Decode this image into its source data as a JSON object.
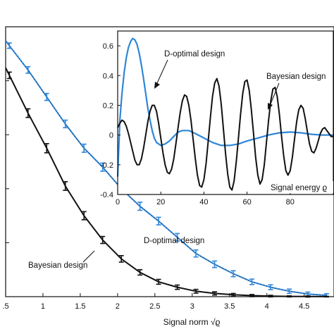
{
  "colors": {
    "bayesian": "#111111",
    "d_optimal": "#2f86d8"
  },
  "chart_data": [
    {
      "type": "line",
      "title": "",
      "xlabel": "Signal norm √ϱ",
      "ylabel": "",
      "xlim": [
        0.5,
        4.9
      ],
      "x_ticks": [
        {
          "value": 0.5,
          "label": ".5"
        },
        {
          "value": 1,
          "label": "1"
        },
        {
          "value": 1.5,
          "label": "1.5"
        },
        {
          "value": 2,
          "label": "2"
        },
        {
          "value": 2.5,
          "label": "2.5"
        },
        {
          "value": 3,
          "label": "3"
        },
        {
          "value": 3.5,
          "label": "3.5"
        },
        {
          "value": 4,
          "label": "4"
        },
        {
          "value": 4.5,
          "label": "4.5"
        }
      ],
      "grid": false,
      "series": [
        {
          "name": "D-optimal design",
          "color": "#2f86d8",
          "x": [
            0.55,
            0.8,
            1.05,
            1.3,
            1.55,
            1.8,
            2.05,
            2.3,
            2.55,
            2.8,
            3.05,
            3.3,
            3.55,
            3.8,
            4.05,
            4.3,
            4.55,
            4.8
          ],
          "y": [
            0.93,
            0.84,
            0.74,
            0.64,
            0.55,
            0.48,
            0.4,
            0.335,
            0.28,
            0.22,
            0.16,
            0.12,
            0.085,
            0.055,
            0.035,
            0.02,
            0.01,
            0.005
          ],
          "err": [
            0.01,
            0.012,
            0.013,
            0.014,
            0.015,
            0.015,
            0.015,
            0.015,
            0.014,
            0.014,
            0.013,
            0.012,
            0.011,
            0.01,
            0.009,
            0.008,
            0.007,
            0.006
          ]
        },
        {
          "name": "Bayesian design",
          "color": "#111111",
          "x": [
            0.55,
            0.8,
            1.05,
            1.3,
            1.55,
            1.8,
            2.05,
            2.3,
            2.55,
            2.8,
            3.05,
            3.3,
            3.55,
            3.8,
            4.05,
            4.3,
            4.55,
            4.8
          ],
          "y": [
            0.82,
            0.68,
            0.55,
            0.41,
            0.3,
            0.21,
            0.14,
            0.09,
            0.055,
            0.035,
            0.02,
            0.012,
            0.007,
            0.004,
            0.002,
            0.001,
            0.0005,
            0.0002
          ],
          "err": [
            0.012,
            0.016,
            0.017,
            0.016,
            0.015,
            0.013,
            0.012,
            0.01,
            0.009,
            0.008,
            0.007,
            0.006,
            0.005,
            0.004,
            0.003,
            0.002,
            0.002,
            0.001
          ]
        }
      ],
      "annotations": [
        {
          "id": "d-optimal",
          "text": "D-optimal design"
        },
        {
          "id": "bayesian",
          "text": "Bayesian design"
        }
      ]
    },
    {
      "type": "line",
      "title": "",
      "xlabel": "Signal energy ϱ",
      "ylabel": "",
      "xlim": [
        0,
        100
      ],
      "ylim": [
        -0.4,
        0.7
      ],
      "x_ticks": [
        {
          "value": 0,
          "label": "0"
        },
        {
          "value": 20,
          "label": "20"
        },
        {
          "value": 40,
          "label": "40"
        },
        {
          "value": 60,
          "label": "60"
        },
        {
          "value": 80,
          "label": "80"
        }
      ],
      "y_ticks": [
        {
          "value": 0.6,
          "label": "0.6"
        },
        {
          "value": 0.4,
          "label": "0.4"
        },
        {
          "value": 0.2,
          "label": "0.2"
        },
        {
          "value": 0,
          "label": "0"
        },
        {
          "value": -0.2,
          "label": "-0.2"
        },
        {
          "value": -0.4,
          "label": "-0.4"
        }
      ],
      "grid": false,
      "series": [
        {
          "name": "D-optimal design",
          "color": "#2f86d8",
          "x": [
            0,
            1,
            2,
            3,
            4,
            5,
            6,
            7,
            8,
            9,
            10,
            11,
            12,
            13,
            14,
            15,
            16,
            17,
            18,
            20,
            22,
            24,
            26,
            28,
            30,
            33,
            36,
            40,
            44,
            48,
            52,
            56,
            60,
            65,
            70,
            75,
            80,
            85,
            90,
            95,
            100
          ],
          "y": [
            -0.28,
            0.1,
            0.28,
            0.42,
            0.52,
            0.59,
            0.63,
            0.65,
            0.64,
            0.61,
            0.55,
            0.47,
            0.38,
            0.28,
            0.18,
            0.1,
            0.03,
            -0.02,
            -0.05,
            -0.07,
            -0.06,
            -0.04,
            -0.01,
            0.02,
            0.03,
            0.03,
            0.01,
            -0.02,
            -0.05,
            -0.07,
            -0.07,
            -0.06,
            -0.04,
            -0.02,
            0.0,
            0.015,
            0.02,
            0.015,
            0.005,
            0.0,
            0.0
          ]
        },
        {
          "name": "Bayesian design",
          "color": "#111111",
          "x": [
            0,
            1,
            2,
            3,
            4,
            5,
            6,
            7,
            8,
            9,
            10,
            11,
            12,
            13,
            14,
            15,
            16,
            17,
            18,
            19,
            20,
            21,
            22,
            23,
            24,
            25,
            26,
            27,
            28,
            29,
            30,
            31,
            32,
            33,
            34,
            35,
            36,
            37,
            38,
            39,
            40,
            41,
            42,
            43,
            44,
            45,
            46,
            47,
            48,
            49,
            50,
            51,
            52,
            53,
            54,
            55,
            56,
            57,
            58,
            59,
            60,
            61,
            62,
            63,
            64,
            65,
            66,
            67,
            68,
            69,
            70,
            71,
            72,
            73,
            74,
            75,
            76,
            77,
            78,
            79,
            80,
            81,
            82,
            83,
            84,
            85,
            86,
            87,
            88,
            89,
            90,
            91,
            92,
            93,
            94,
            95,
            96,
            97,
            98,
            99,
            100
          ],
          "y": [
            0.05,
            0.08,
            0.1,
            0.09,
            0.06,
            0.01,
            -0.05,
            -0.11,
            -0.17,
            -0.2,
            -0.2,
            -0.16,
            -0.09,
            0.0,
            0.09,
            0.16,
            0.2,
            0.2,
            0.16,
            0.08,
            -0.02,
            -0.12,
            -0.2,
            -0.25,
            -0.26,
            -0.23,
            -0.16,
            -0.06,
            0.05,
            0.15,
            0.23,
            0.27,
            0.26,
            0.2,
            0.1,
            -0.03,
            -0.16,
            -0.27,
            -0.34,
            -0.35,
            -0.3,
            -0.19,
            -0.04,
            0.12,
            0.26,
            0.35,
            0.38,
            0.33,
            0.21,
            0.05,
            -0.12,
            -0.26,
            -0.35,
            -0.37,
            -0.31,
            -0.18,
            -0.02,
            0.14,
            0.28,
            0.36,
            0.37,
            0.3,
            0.17,
            0.01,
            -0.15,
            -0.27,
            -0.33,
            -0.3,
            -0.2,
            -0.05,
            0.1,
            0.23,
            0.31,
            0.32,
            0.26,
            0.14,
            -0.01,
            -0.14,
            -0.24,
            -0.27,
            -0.24,
            -0.15,
            -0.03,
            0.09,
            0.17,
            0.2,
            0.18,
            0.11,
            0.02,
            -0.06,
            -0.11,
            -0.12,
            -0.09,
            -0.04,
            0.01,
            0.04,
            0.05,
            0.03,
            0.01,
            -0.01,
            -0.01
          ]
        }
      ],
      "annotations": [
        {
          "id": "d-optimal",
          "text": "D-optimal design"
        },
        {
          "id": "bayesian",
          "text": "Bayesian design"
        }
      ]
    }
  ]
}
